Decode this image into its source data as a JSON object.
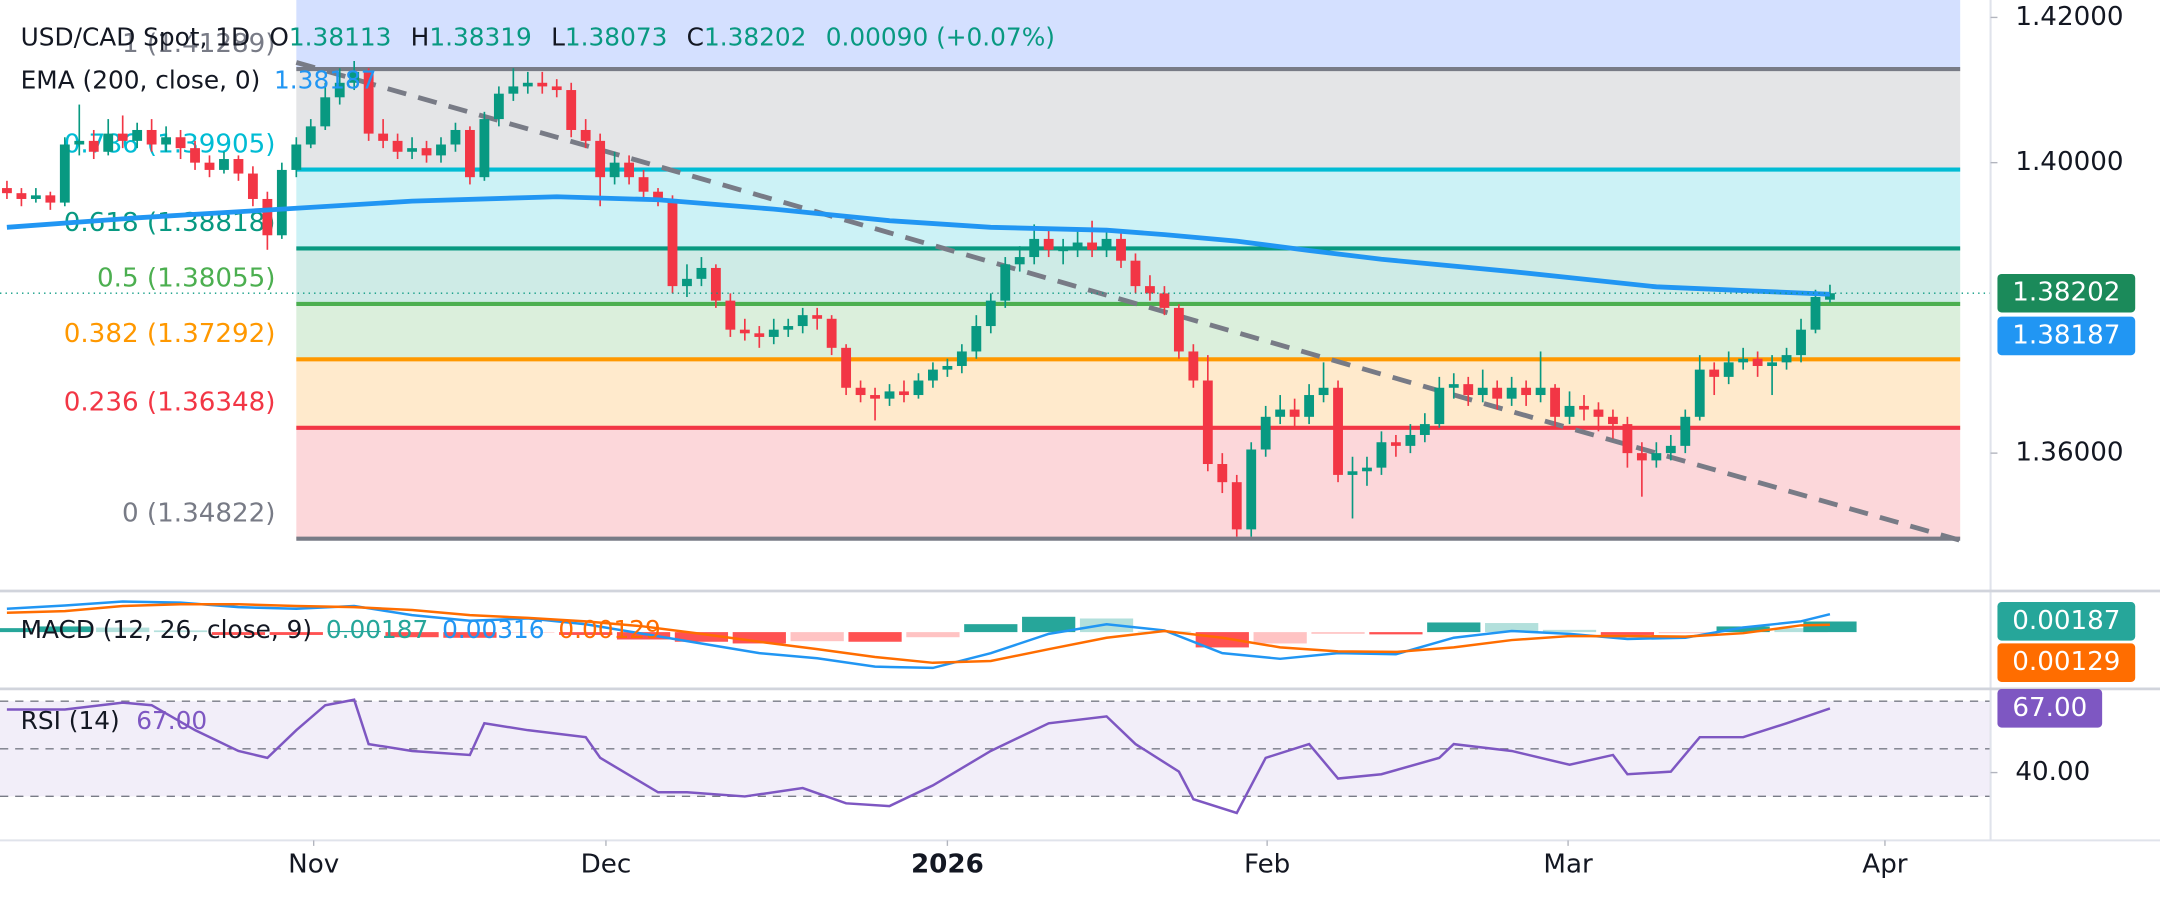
{
  "chart_data": [
    {
      "type": "candlestick",
      "title": "USD/CAD Spot, 1D",
      "ohlc_labels": [
        "O",
        "H",
        "L",
        "C"
      ],
      "change": "0.00090 (+0.07%)",
      "up_color": "#089981",
      "down_color": "#f23645",
      "xlim": [
        -0.48,
        137.1
      ],
      "xticks": [
        {
          "value": 21.2,
          "label": "Nov"
        },
        {
          "value": 41.4,
          "label": "Dec"
        },
        {
          "value": 65.0,
          "label": "2026"
        },
        {
          "value": 87.1,
          "label": "Feb"
        },
        {
          "value": 107.9,
          "label": "Mar"
        },
        {
          "value": 129.8,
          "label": "Apr"
        }
      ],
      "ylim": [
        1.3412,
        1.4224
      ],
      "yticks": [
        {
          "value": 1.42,
          "label": "1.42000"
        },
        {
          "value": 1.4,
          "label": "1.40000"
        },
        {
          "value": 1.36,
          "label": "1.36000"
        }
      ],
      "ohlc": [
        [
          1.3965,
          1.3975,
          1.395,
          1.3958
        ],
        [
          1.3958,
          1.3965,
          1.394,
          1.395
        ],
        [
          1.395,
          1.3965,
          1.3945,
          1.3955
        ],
        [
          1.3955,
          1.396,
          1.3935,
          1.3945
        ],
        [
          1.3945,
          1.4035,
          1.394,
          1.4025
        ],
        [
          1.4025,
          1.408,
          1.401,
          1.403
        ],
        [
          1.403,
          1.4045,
          1.4005,
          1.4015
        ],
        [
          1.4015,
          1.406,
          1.401,
          1.404
        ],
        [
          1.404,
          1.4065,
          1.402,
          1.403
        ],
        [
          1.403,
          1.4055,
          1.402,
          1.4045
        ],
        [
          1.4045,
          1.406,
          1.4015,
          1.4025
        ],
        [
          1.4025,
          1.405,
          1.4015,
          1.4035
        ],
        [
          1.4035,
          1.4045,
          1.4005,
          1.402
        ],
        [
          1.402,
          1.403,
          1.399,
          1.4
        ],
        [
          1.4,
          1.401,
          1.398,
          1.399
        ],
        [
          1.399,
          1.4015,
          1.3985,
          1.4005
        ],
        [
          1.4005,
          1.401,
          1.3975,
          1.3985
        ],
        [
          1.3985,
          1.3995,
          1.394,
          1.395
        ],
        [
          1.395,
          1.396,
          1.388,
          1.39
        ],
        [
          1.39,
          1.4,
          1.3895,
          1.399
        ],
        [
          1.399,
          1.4035,
          1.398,
          1.4025
        ],
        [
          1.4025,
          1.406,
          1.402,
          1.405
        ],
        [
          1.405,
          1.411,
          1.4045,
          1.409
        ],
        [
          1.409,
          1.413,
          1.408,
          1.411
        ],
        [
          1.411,
          1.414,
          1.41,
          1.4125
        ],
        [
          1.4125,
          1.413,
          1.403,
          1.404
        ],
        [
          1.404,
          1.406,
          1.402,
          1.403
        ],
        [
          1.403,
          1.404,
          1.4005,
          1.4015
        ],
        [
          1.4015,
          1.4035,
          1.4005,
          1.402
        ],
        [
          1.402,
          1.403,
          1.4,
          1.401
        ],
        [
          1.401,
          1.4035,
          1.4,
          1.4025
        ],
        [
          1.4025,
          1.4055,
          1.4015,
          1.4045
        ],
        [
          1.4045,
          1.405,
          1.397,
          1.398
        ],
        [
          1.398,
          1.407,
          1.3975,
          1.406
        ],
        [
          1.406,
          1.4105,
          1.405,
          1.4095
        ],
        [
          1.4095,
          1.413,
          1.4085,
          1.4105
        ],
        [
          1.4105,
          1.4125,
          1.4095,
          1.411
        ],
        [
          1.411,
          1.4125,
          1.4095,
          1.4105
        ],
        [
          1.4105,
          1.4115,
          1.409,
          1.41
        ],
        [
          1.41,
          1.411,
          1.4035,
          1.4045
        ],
        [
          1.4045,
          1.406,
          1.402,
          1.403
        ],
        [
          1.403,
          1.404,
          1.394,
          1.398
        ],
        [
          1.398,
          1.4015,
          1.397,
          1.4
        ],
        [
          1.4,
          1.401,
          1.397,
          1.398
        ],
        [
          1.398,
          1.399,
          1.395,
          1.396
        ],
        [
          1.396,
          1.3965,
          1.394,
          1.395
        ],
        [
          1.395,
          1.3955,
          1.382,
          1.383
        ],
        [
          1.383,
          1.386,
          1.3815,
          1.384
        ],
        [
          1.384,
          1.387,
          1.383,
          1.3855
        ],
        [
          1.3855,
          1.386,
          1.38,
          1.381
        ],
        [
          1.381,
          1.382,
          1.376,
          1.377
        ],
        [
          1.377,
          1.3785,
          1.3755,
          1.3765
        ],
        [
          1.3765,
          1.3775,
          1.3745,
          1.376
        ],
        [
          1.376,
          1.3785,
          1.375,
          1.377
        ],
        [
          1.377,
          1.3785,
          1.376,
          1.3775
        ],
        [
          1.3775,
          1.38,
          1.3765,
          1.379
        ],
        [
          1.379,
          1.38,
          1.377,
          1.3785
        ],
        [
          1.3785,
          1.379,
          1.3735,
          1.3745
        ],
        [
          1.3745,
          1.375,
          1.368,
          1.369
        ],
        [
          1.369,
          1.37,
          1.367,
          1.368
        ],
        [
          1.368,
          1.369,
          1.3645,
          1.3675
        ],
        [
          1.3675,
          1.3695,
          1.3665,
          1.3685
        ],
        [
          1.3685,
          1.37,
          1.367,
          1.368
        ],
        [
          1.368,
          1.371,
          1.3675,
          1.37
        ],
        [
          1.37,
          1.3725,
          1.369,
          1.3715
        ],
        [
          1.3715,
          1.373,
          1.3705,
          1.372
        ],
        [
          1.372,
          1.375,
          1.371,
          1.374
        ],
        [
          1.374,
          1.379,
          1.373,
          1.3775
        ],
        [
          1.3775,
          1.382,
          1.3765,
          1.381
        ],
        [
          1.381,
          1.387,
          1.38,
          1.386
        ],
        [
          1.386,
          1.3885,
          1.385,
          1.387
        ],
        [
          1.387,
          1.3915,
          1.386,
          1.3895
        ],
        [
          1.3895,
          1.391,
          1.387,
          1.388
        ],
        [
          1.388,
          1.3895,
          1.386,
          1.388
        ],
        [
          1.388,
          1.391,
          1.387,
          1.389
        ],
        [
          1.389,
          1.392,
          1.387,
          1.388
        ],
        [
          1.388,
          1.391,
          1.387,
          1.3895
        ],
        [
          1.3895,
          1.3905,
          1.3855,
          1.3865
        ],
        [
          1.3865,
          1.3875,
          1.382,
          1.383
        ],
        [
          1.383,
          1.3845,
          1.381,
          1.382
        ],
        [
          1.382,
          1.383,
          1.379,
          1.38
        ],
        [
          1.38,
          1.3805,
          1.373,
          1.374
        ],
        [
          1.374,
          1.375,
          1.369,
          1.37
        ],
        [
          1.37,
          1.3735,
          1.3575,
          1.3585
        ],
        [
          1.3585,
          1.36,
          1.3545,
          1.356
        ],
        [
          1.356,
          1.357,
          1.3485,
          1.3495
        ],
        [
          1.3495,
          1.3615,
          1.3485,
          1.3605
        ],
        [
          1.3605,
          1.3665,
          1.3595,
          1.365
        ],
        [
          1.365,
          1.368,
          1.364,
          1.366
        ],
        [
          1.366,
          1.3675,
          1.3635,
          1.365
        ],
        [
          1.365,
          1.3695,
          1.364,
          1.368
        ],
        [
          1.368,
          1.3725,
          1.367,
          1.369
        ],
        [
          1.369,
          1.37,
          1.356,
          1.357
        ],
        [
          1.357,
          1.3595,
          1.351,
          1.3575
        ],
        [
          1.3575,
          1.3595,
          1.3555,
          1.358
        ],
        [
          1.358,
          1.363,
          1.357,
          1.3615
        ],
        [
          1.3615,
          1.3625,
          1.3595,
          1.361
        ],
        [
          1.361,
          1.364,
          1.36,
          1.3625
        ],
        [
          1.3625,
          1.3655,
          1.3615,
          1.364
        ],
        [
          1.364,
          1.3705,
          1.3635,
          1.369
        ],
        [
          1.369,
          1.371,
          1.3675,
          1.3695
        ],
        [
          1.3695,
          1.3705,
          1.3665,
          1.368
        ],
        [
          1.368,
          1.3715,
          1.367,
          1.369
        ],
        [
          1.369,
          1.37,
          1.366,
          1.3675
        ],
        [
          1.3675,
          1.3705,
          1.3665,
          1.369
        ],
        [
          1.369,
          1.37,
          1.3665,
          1.368
        ],
        [
          1.368,
          1.374,
          1.367,
          1.369
        ],
        [
          1.369,
          1.3695,
          1.3635,
          1.365
        ],
        [
          1.365,
          1.3685,
          1.364,
          1.3665
        ],
        [
          1.3665,
          1.368,
          1.3645,
          1.366
        ],
        [
          1.366,
          1.367,
          1.363,
          1.365
        ],
        [
          1.365,
          1.366,
          1.362,
          1.364
        ],
        [
          1.364,
          1.365,
          1.358,
          1.36
        ],
        [
          1.36,
          1.3615,
          1.354,
          1.359
        ],
        [
          1.359,
          1.3615,
          1.358,
          1.36
        ],
        [
          1.36,
          1.3625,
          1.359,
          1.361
        ],
        [
          1.361,
          1.366,
          1.36,
          1.365
        ],
        [
          1.365,
          1.3735,
          1.3645,
          1.3715
        ],
        [
          1.3715,
          1.3725,
          1.368,
          1.3705
        ],
        [
          1.3705,
          1.374,
          1.3695,
          1.3725
        ],
        [
          1.3725,
          1.3745,
          1.3715,
          1.373
        ],
        [
          1.373,
          1.374,
          1.3705,
          1.372
        ],
        [
          1.372,
          1.3735,
          1.368,
          1.3725
        ],
        [
          1.3725,
          1.3745,
          1.3715,
          1.3735
        ],
        [
          1.3735,
          1.3785,
          1.3725,
          1.377
        ],
        [
          1.377,
          1.3825,
          1.3765,
          1.3815
        ],
        [
          1.38113,
          1.38319,
          1.38073,
          1.38202
        ]
      ],
      "series": [
        {
          "name": "EMA (200, close, 0)",
          "color": "#2196f3",
          "x": [
            0,
            9,
            19,
            28,
            38,
            45,
            53,
            61,
            68,
            76,
            80,
            85,
            90,
            95,
            104,
            114,
            126
          ],
          "values": [
            1.3911,
            1.3924,
            1.3936,
            1.3947,
            1.3953,
            1.3949,
            1.3936,
            1.392,
            1.3911,
            1.3907,
            1.3901,
            1.3892,
            1.3879,
            1.3867,
            1.385,
            1.3829,
            1.38187
          ]
        }
      ],
      "fib_x": [
        20,
        135
      ],
      "above_color": "#2962ff",
      "fib_levels": [
        {
          "label": "1 (1.41289)",
          "value": 1.41289,
          "color": "#787b86"
        },
        {
          "label": "0.786 (1.39905)",
          "value": 1.39905,
          "color": "#00bcd4"
        },
        {
          "label": "0.618 (1.38818)",
          "value": 1.38818,
          "color": "#089981"
        },
        {
          "label": "0.5 (1.38055)",
          "value": 1.38055,
          "color": "#4caf50"
        },
        {
          "label": "0.382 (1.37292)",
          "value": 1.37292,
          "color": "#ff9800"
        },
        {
          "label": "0.236 (1.36348)",
          "value": 1.36348,
          "color": "#f23645"
        },
        {
          "label": "0 (1.34822)",
          "value": 1.34822,
          "color": "#787b86"
        }
      ],
      "trendline": {
        "x": [
          20,
          135
        ],
        "values": [
          1.4138,
          1.348
        ],
        "color": "#787b86"
      }
    },
    {
      "type": "macd",
      "title": "MACD (12, 26, close, 9)",
      "x": [
        0,
        4,
        8,
        12,
        16,
        20,
        24,
        28,
        32,
        36,
        40,
        44,
        48,
        52,
        56,
        60,
        64,
        68,
        72,
        76,
        80,
        84,
        88,
        92,
        96,
        100,
        104,
        108,
        112,
        116,
        120,
        124,
        126
      ],
      "ylim": [
        -0.01,
        0.007
      ],
      "histogram": {
        "values": [
          0.0007,
          0.001,
          0.0008,
          0.0003,
          -0.0005,
          -0.0005,
          0.0002,
          -0.0009,
          -0.001,
          -0.0001,
          -0.0005,
          -0.0013,
          -0.0017,
          -0.002,
          -0.0016,
          -0.0017,
          -0.0009,
          0.0014,
          0.0027,
          0.0024,
          0.0001,
          -0.0027,
          -0.002,
          -0.0003,
          -0.0004,
          0.0017,
          0.0016,
          0.0004,
          -0.0005,
          -0.0002,
          0.001,
          0.0007,
          0.00187
        ],
        "color": "#26a69a",
        "color_down": "#ff5252"
      },
      "macd": {
        "values": [
          0.0041,
          0.0047,
          0.0054,
          0.0052,
          0.0044,
          0.0041,
          0.0046,
          0.003,
          0.002,
          0.0024,
          0.0014,
          -0.0003,
          -0.002,
          -0.0037,
          -0.0046,
          -0.0061,
          -0.0063,
          -0.0037,
          -0.0003,
          0.0014,
          0.0003,
          -0.0037,
          -0.0047,
          -0.0037,
          -0.0039,
          -0.001,
          0.0002,
          -0.0003,
          -0.0012,
          -0.001,
          0.0008,
          0.0019,
          0.00316
        ],
        "color": "#2196f3"
      },
      "signal": {
        "values": [
          0.0034,
          0.0037,
          0.0046,
          0.0049,
          0.0049,
          0.0046,
          0.0044,
          0.0039,
          0.003,
          0.0025,
          0.0019,
          0.001,
          -0.0003,
          -0.0017,
          -0.003,
          -0.0044,
          -0.0054,
          -0.0051,
          -0.003,
          -0.001,
          0.0002,
          -0.001,
          -0.0027,
          -0.0034,
          -0.0035,
          -0.0027,
          -0.0014,
          -0.0007,
          -0.0007,
          -0.0008,
          -0.0002,
          0.0012,
          0.00129
        ],
        "color": "#ff6d00"
      }
    },
    {
      "type": "rsi",
      "title": "RSI (14)",
      "color": "#7e57c2",
      "last_label": "67.00",
      "x": [
        0,
        4,
        8,
        10,
        13,
        16,
        18,
        20,
        22,
        24,
        25,
        28,
        32,
        33,
        36,
        40,
        41,
        45,
        47,
        51,
        55,
        58,
        61,
        64,
        68,
        72,
        76,
        78,
        81,
        82,
        85,
        87,
        90,
        92,
        95,
        99,
        100,
        104,
        108,
        111,
        112,
        115,
        117,
        120,
        123,
        126
      ],
      "values": [
        66.5,
        66.5,
        69.4,
        68.3,
        57.8,
        49.1,
        46.2,
        57.8,
        68.3,
        70.6,
        52.0,
        49.1,
        47.4,
        60.7,
        57.8,
        54.9,
        46.2,
        31.7,
        31.7,
        30.0,
        33.5,
        27.1,
        25.9,
        34.6,
        49.1,
        60.7,
        63.6,
        52.0,
        40.4,
        28.8,
        23.0,
        46.2,
        52.0,
        37.5,
        39.3,
        46.2,
        52.0,
        49.1,
        43.3,
        47.4,
        39.3,
        40.4,
        54.9,
        54.9,
        60.7,
        67.0
      ],
      "ylim": [
        11.5,
        75.2
      ],
      "yticks": [
        {
          "value": 40,
          "label": "40.00"
        }
      ],
      "levels": [
        70,
        50,
        30
      ],
      "band": [
        30,
        70
      ]
    }
  ]
}
